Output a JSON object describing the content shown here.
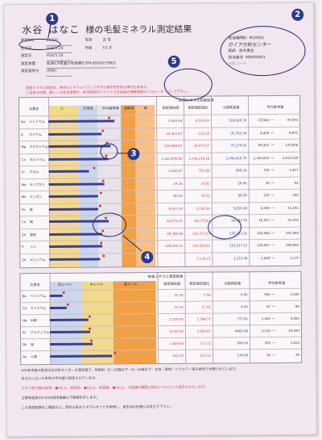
{
  "header": {
    "surname": "水谷",
    "given": "はなこ",
    "title": "様の毛髪ミネラル測定結果",
    "fields": [
      {
        "k": "測定NO",
        "v": "11000",
        "k2": "性別",
        "v2": "女 性"
      },
      {
        "k": "受付日",
        "v": "H18.5.29",
        "k2": "年齢",
        "v2": "53 才"
      },
      {
        "k": "測定日",
        "v": "H18.5.30",
        "k2": "",
        "v2": ""
      },
      {
        "k": "測定装置",
        "v": "高津ICP質量分析装置ICPM-8500(ICPMS)",
        "k2": "",
        "v2": ""
      },
      {
        "k": "測定値単位",
        "v": "(PPB)",
        "k2": "",
        "v2": ""
      }
    ]
  },
  "lab": {
    "id_label": "担当機関ID",
    "id_value": "M10001",
    "name": "ガイア分析センター",
    "doctor_label": "医師",
    "doctor": "鈴木恵也",
    "code_label": "担当者ID",
    "code_value": "M0000003",
    "misc": "分析コード"
  },
  "notes": {
    "red1": "毛髪ミネラル測定は、身体のミネラルバランスやその過不足を知る事が出来ます。",
    "red2": "ご自身の体調、癖しくは生活習慣や、担当医師のアドバイスを身体の健康管理のパラメーターにして下さい。"
  },
  "essential": {
    "title": "必須ミネラル測定結果",
    "cols": [
      "元素名",
      "少",
      "正常域",
      "平均基準値",
      "過剰域",
      "高",
      "測定値前回",
      "測定値前回比",
      "今回測定値",
      "平均参考値"
    ],
    "rows": [
      {
        "sym": "Na",
        "name": "ナトリウム",
        "bar": 0.62,
        "dot": 0.56,
        "prev": "2,644.94",
        "ratio": "6,539.60",
        "now": "118,428.30",
        "ref_lo": "23,546",
        "ref_hi": "47,093"
      },
      {
        "sym": "K",
        "name": "カリウム",
        "bar": 0.5,
        "dot": 0.5,
        "prev": "14,462.47",
        "ratio": "231.10",
        "now": "26,761.04",
        "ref_lo": "4,436",
        "ref_hi": "8,871"
      },
      {
        "sym": "Mg",
        "name": "マグネシウム",
        "bar": 0.58,
        "dot": 0.54,
        "prev": "115,688.83",
        "ratio": "34,472.67",
        "now": "70,270.42",
        "ref_lo": "85,403",
        "ref_hi": "170,806"
      },
      {
        "sym": "Ca",
        "name": "カルシウム",
        "bar": 0.56,
        "dot": 0.53,
        "prev": "2,441,805.85",
        "ratio": "1,034,218.18",
        "now": "1,040,010.75",
        "ref_lo": "1,306,810",
        "ref_hi": "2,613,220"
      },
      {
        "sym": "Cr",
        "name": "クロム",
        "bar": 0.38,
        "dot": 0.42,
        "prev": "1,062.67",
        "ratio": "753.88",
        "now": "665.24",
        "ref_lo": "709",
        "ref_hi": "1,417"
      },
      {
        "sym": "Mo",
        "name": "モリブデン",
        "bar": 0.52,
        "dot": 0.5,
        "prev": "29.26",
        "ratio": "37.81",
        "now": "28.90",
        "ref_lo": "26",
        "ref_hi": "52"
      },
      {
        "sym": "Mn",
        "name": "マンガン",
        "bar": 0.46,
        "dot": 0.48,
        "prev": "80.65",
        "ratio": "38.02",
        "now": "68.58",
        "ref_lo": "125",
        "ref_hi": "250"
      },
      {
        "sym": "Fe",
        "name": "鉄",
        "bar": 0.46,
        "dot": 0.47,
        "prev": "6,507.00",
        "ratio": "3,190.16",
        "now": "5,838.18",
        "ref_lo": "6,096",
        "ref_hi": "12,191"
      },
      {
        "sym": "Cu",
        "name": "銅",
        "bar": 0.56,
        "dot": 0.52,
        "prev": "42,572.01",
        "ratio": "29,175.83",
        "now": "24,092.74",
        "ref_lo": "16,537",
        "ref_hi": "33,075"
      },
      {
        "sym": "Zn",
        "name": "亜鉛",
        "bar": 0.5,
        "dot": 0.49,
        "prev": "89,388.98",
        "ratio": "131,373.23",
        "now": "135,132.31",
        "ref_lo": "130,946",
        "ref_hi": "261,893"
      },
      {
        "sym": "P",
        "name": "リン",
        "bar": 0.5,
        "dot": 0.48,
        "prev": "249,470.01",
        "ratio": "132,554.82",
        "now": "131,517.12",
        "ref_lo": "129,947",
        "ref_hi": "259,893"
      },
      {
        "sym": "Se",
        "name": "セレニウム",
        "bar": 0.48,
        "dot": 0.5,
        "prev": "",
        "ratio": "1,136.23",
        "now": "1,272.08",
        "ref_lo": "1,069",
        "ref_hi": "2,137"
      }
    ]
  },
  "harmful": {
    "title": "有害ミネラル測定結果",
    "cols": [
      "元素名",
      "低レベル",
      "中レベル",
      "高レベル",
      "測定値前回",
      "測定値前回比",
      "今回測定値",
      "平均参考値"
    ],
    "rows": [
      {
        "sym": "Be",
        "name": "ベリリウム",
        "bar": 0.12,
        "dot": 0.12,
        "prev": "22.25",
        "ratio": "0.58",
        "now": "0.00",
        "ref_lo": "500",
        "ref_hi": "2,500"
      },
      {
        "sym": "Cd",
        "name": "カドミウム",
        "bar": 0.16,
        "dot": 0.16,
        "prev": "10.78",
        "ratio": "17.92",
        "now": "4.48",
        "ref_lo": "20",
        "ref_hi": "80"
      },
      {
        "sym": "Hg",
        "name": "水銀",
        "bar": 0.36,
        "dot": 0.36,
        "prev": "2,119.00",
        "ratio": "1,384.77",
        "now": "772.00",
        "ref_lo": "1,000",
        "ref_hi": "4,500"
      },
      {
        "sym": "Al",
        "name": "アルミニウム",
        "bar": 0.38,
        "dot": 0.36,
        "prev": "5,030.00",
        "ratio": "2,858.97",
        "now": "4683.48",
        "ref_lo": "3,130",
        "ref_hi": "15,650"
      },
      {
        "sym": "Pb",
        "name": "鉛",
        "bar": 0.4,
        "dot": 0.38,
        "prev": "1,629.44",
        "ratio": "713.72",
        "now": "456.00",
        "ref_lo": "205",
        "ref_hi": "1,025"
      },
      {
        "sym": "As",
        "name": "ヒ素",
        "bar": 0.58,
        "dot": 0.6,
        "prev": "511.00",
        "ratio": "102.12",
        "now": "130.86",
        "ref_lo": "16",
        "ref_hi": "80"
      }
    ]
  },
  "footer": {
    "line1": "※分参考値の設定は当分析センターの測定値で、年齢別（0〜16歳以下・8〜34歳以下・女性・男性）ヘアカラー等の条件で分類されています。",
    "line2": "あなたに当った条件の平均値で設定されています。",
    "line3": "グラフ色下線の説明：●0以上、前回比：●0以上、前回値、●0以上、今回値の範囲に相当レベルとして表示されています。",
    "line4": "注意喚起表の0.00は測定機器の下限値を示します。",
    "line5": "この測定結果をご確認の上、同封の各必ミネラルガイドを参照し、食生活の改善にお役立て下さい。"
  },
  "markers": [
    "1",
    "2",
    "3",
    "4",
    "5"
  ]
}
